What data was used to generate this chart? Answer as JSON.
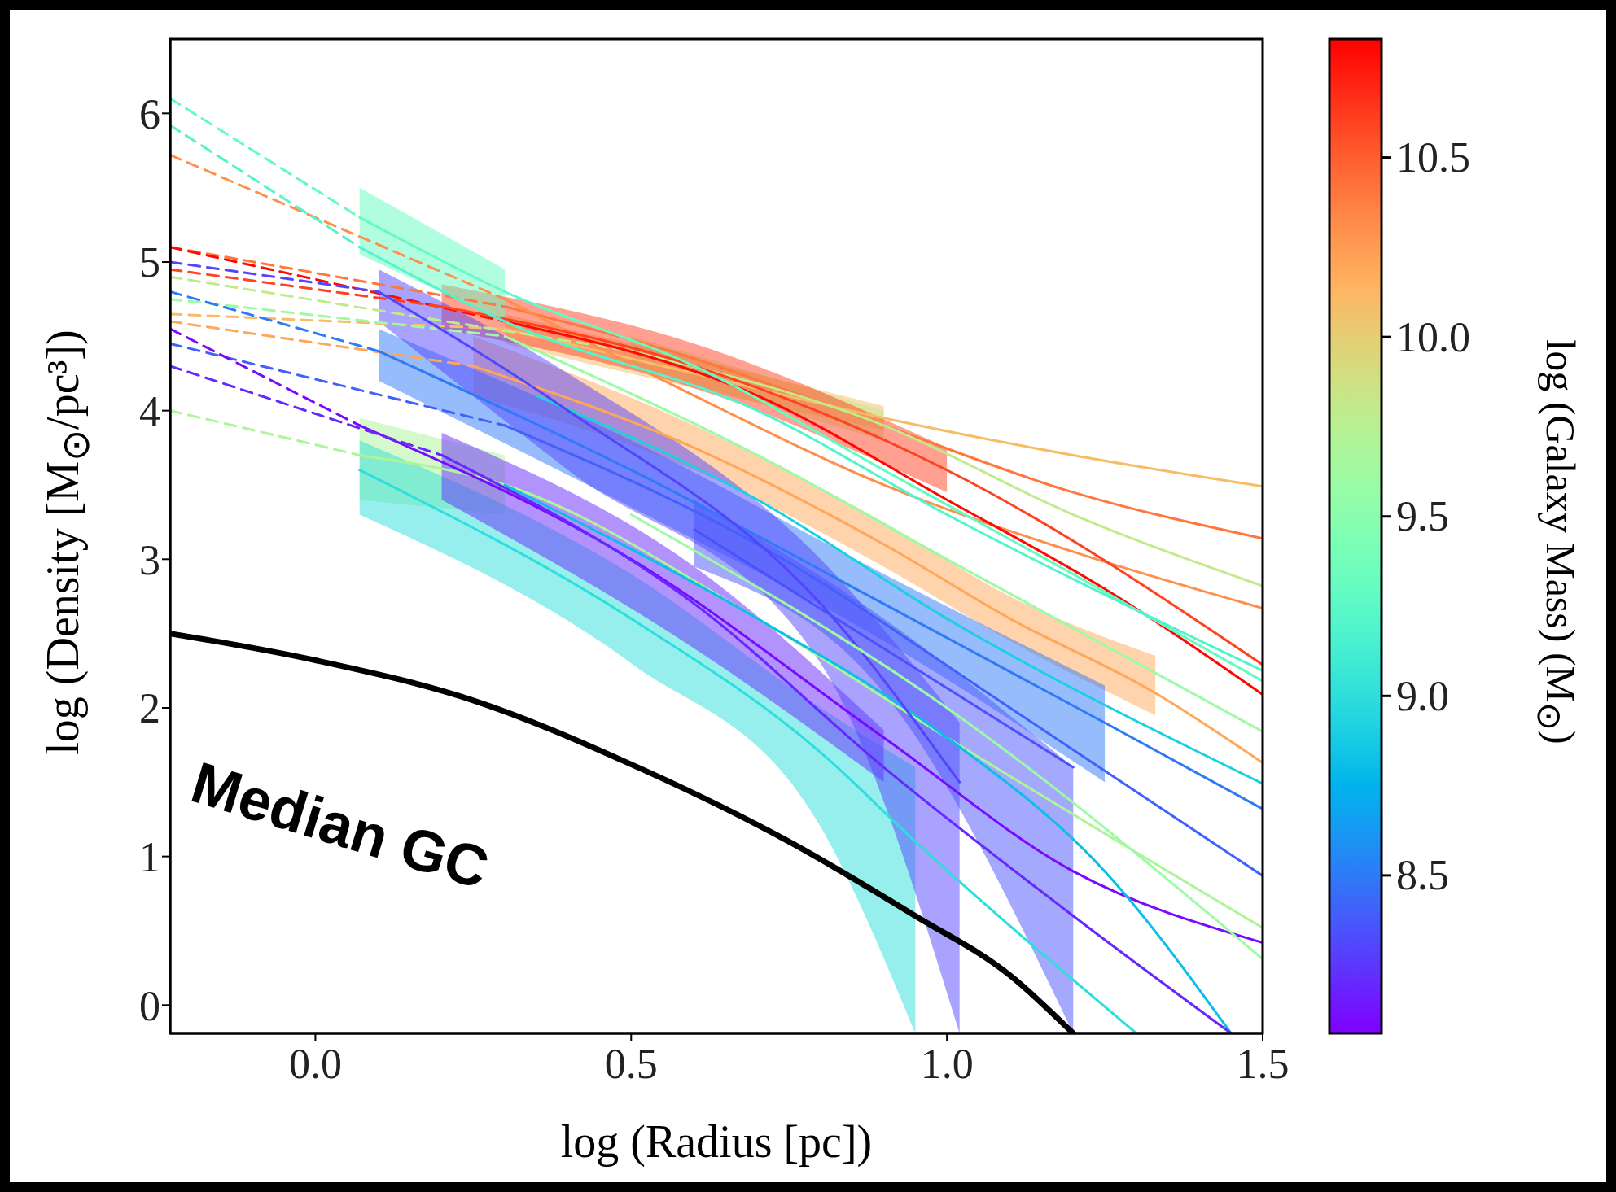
{
  "chart_data": {
    "type": "line",
    "xlabel": "log (Radius [pc])",
    "ylabel": "log (Density [M$_{⊙}$/pc³])",
    "clabel": "log (Galaxy Mass) (M$_{⊙}$)",
    "xlim": [
      -0.23,
      1.5
    ],
    "xticks": [
      {
        "value": 0,
        "label": "0.0"
      },
      {
        "value": 0.5,
        "label": "0.5"
      },
      {
        "value": 1,
        "label": "1.0"
      },
      {
        "value": 1.5,
        "label": "1.5"
      }
    ],
    "ylim": [
      -0.19,
      6.5
    ],
    "yticks": [
      0,
      1,
      2,
      3,
      4,
      5,
      6
    ],
    "clim": [
      8.06,
      10.83
    ],
    "cticks": [
      {
        "value": 8.5,
        "label": "8.5"
      },
      {
        "value": 9,
        "label": "9.0"
      },
      {
        "value": 9.5,
        "label": "9.5"
      },
      {
        "value": 10,
        "label": "10.0"
      },
      {
        "value": 10.5,
        "label": "10.5"
      }
    ],
    "grid": false,
    "legend": false,
    "line_style": "solid",
    "annotations": [
      "Median GC"
    ],
    "series": [
      {
        "color": "#f8bc67",
        "line_style": "dashed",
        "x": [
          -0.23,
          0.3
        ],
        "values": [
          4.65,
          4.55
        ]
      },
      {
        "color": "#f8bc67",
        "x": [
          0.3,
          0.6,
          0.9,
          1.2,
          1.5
        ],
        "values": [
          4.55,
          4.25,
          3.95,
          3.7,
          3.49
        ],
        "lower": [
          4.45,
          4.15,
          3.87,
          null,
          null
        ],
        "upper": [
          4.65,
          4.35,
          4.03,
          null,
          null
        ]
      },
      {
        "color": "#ff773d",
        "line_style": "dashed",
        "x": [
          -0.23,
          0.3
        ],
        "values": [
          5.1,
          4.7
        ]
      },
      {
        "color": "#ff773d",
        "x": [
          0.3,
          0.6,
          0.9,
          1.2,
          1.5
        ],
        "values": [
          4.7,
          4.35,
          3.9,
          3.45,
          3.14
        ]
      },
      {
        "color": "#c1ea8c",
        "line_style": "dashed",
        "x": [
          -0.23,
          0.5
        ],
        "values": [
          4.9,
          4.4
        ]
      },
      {
        "color": "#c1ea8c",
        "x": [
          0.5,
          0.9,
          1.2,
          1.5
        ],
        "values": [
          4.4,
          3.9,
          3.3,
          2.82
        ],
        "lower": [
          4.3,
          3.8,
          null,
          null
        ],
        "upper": [
          4.5,
          4.0,
          null,
          null
        ]
      },
      {
        "color": "#ff904b",
        "line_style": "dashed",
        "x": [
          -0.23,
          0.3
        ],
        "values": [
          5.72,
          4.75
        ]
      },
      {
        "color": "#ff904b",
        "x": [
          0.3,
          0.6,
          0.9,
          1.2,
          1.5
        ],
        "values": [
          4.75,
          4.1,
          3.5,
          3.05,
          2.67
        ]
      },
      {
        "color": "#ff0904",
        "line_style": "dashed",
        "x": [
          -0.23,
          0.3
        ],
        "values": [
          5.1,
          4.6
        ]
      },
      {
        "color": "#ff0904",
        "x": [
          0.3,
          0.7,
          1.0,
          1.25,
          1.5
        ],
        "values": [
          4.6,
          4.1,
          3.4,
          2.8,
          2.09
        ]
      },
      {
        "color": "#ff4221",
        "line_style": "dashed",
        "x": [
          -0.23,
          0.2
        ],
        "values": [
          4.95,
          4.7
        ]
      },
      {
        "color": "#ff4221",
        "x": [
          0.2,
          0.6,
          1.0,
          1.5
        ],
        "values": [
          4.7,
          4.3,
          3.6,
          2.29
        ],
        "lower": [
          4.55,
          4.15,
          3.45,
          null
        ],
        "upper": [
          4.85,
          4.45,
          3.75,
          null
        ]
      },
      {
        "color": "#64fbc2",
        "line_style": "dashed",
        "x": [
          -0.23,
          0.07
        ],
        "values": [
          6.1,
          5.3
        ]
      },
      {
        "color": "#64fbc2",
        "x": [
          0.07,
          0.3,
          0.6,
          0.9,
          1.2,
          1.5
        ],
        "values": [
          5.3,
          4.8,
          4.3,
          3.6,
          2.9,
          2.18
        ],
        "lower": [
          5.05,
          4.6,
          null,
          null,
          null,
          null
        ],
        "upper": [
          5.5,
          4.95,
          null,
          null,
          null,
          null
        ]
      },
      {
        "color": "#52f5cb",
        "line_style": "dashed",
        "x": [
          -0.23,
          0.07
        ],
        "values": [
          5.92,
          5.1
        ]
      },
      {
        "color": "#52f5cb",
        "x": [
          0.07,
          0.3,
          0.7,
          1.0,
          1.5
        ],
        "values": [
          5.1,
          4.6,
          4.0,
          3.3,
          2.25
        ]
      },
      {
        "color": "#9cfba4",
        "line_style": "dashed",
        "x": [
          -0.23,
          0.3
        ],
        "values": [
          4.75,
          4.5
        ]
      },
      {
        "color": "#9cfba4",
        "x": [
          0.3,
          0.7,
          1.0,
          1.5
        ],
        "values": [
          4.5,
          3.7,
          3.0,
          1.84
        ]
      },
      {
        "color": "#ffa759",
        "line_style": "dashed",
        "x": [
          -0.23,
          0.25
        ],
        "values": [
          4.6,
          4.3
        ]
      },
      {
        "color": "#ffa759",
        "x": [
          0.25,
          0.6,
          0.9,
          1.1,
          1.33,
          1.5
        ],
        "values": [
          4.3,
          3.75,
          3.1,
          2.6,
          2.1,
          1.63
        ],
        "lower": [
          4.1,
          3.6,
          2.95,
          2.45,
          1.95,
          null
        ],
        "upper": [
          4.5,
          3.9,
          3.25,
          2.75,
          2.35,
          null
        ]
      },
      {
        "color": "#1bd0e3",
        "x": [
          0.35,
          0.7,
          1.0,
          1.5
        ],
        "values": [
          4.1,
          3.4,
          2.6,
          1.49
        ]
      },
      {
        "color": "#2e7af7",
        "line_style": "dashed",
        "x": [
          -0.23,
          0.1
        ],
        "values": [
          4.8,
          4.4
        ]
      },
      {
        "color": "#2e7af7",
        "x": [
          0.1,
          0.5,
          0.9,
          1.25,
          1.5
        ],
        "values": [
          4.4,
          3.6,
          2.7,
          1.9,
          1.32
        ],
        "lower": [
          4.2,
          3.35,
          2.45,
          1.5,
          null
        ],
        "upper": [
          4.55,
          3.8,
          2.9,
          2.15,
          null
        ]
      },
      {
        "color": "#4161fa",
        "line_style": "dashed",
        "x": [
          -0.23,
          0.3
        ],
        "values": [
          4.45,
          3.9
        ]
      },
      {
        "color": "#4161fa",
        "x": [
          0.3,
          0.7,
          1.1,
          1.5
        ],
        "values": [
          3.9,
          3.1,
          2.0,
          0.87
        ]
      },
      {
        "color": "#aef498",
        "line_style": "dashed",
        "x": [
          -0.23,
          0.07
        ],
        "values": [
          4.0,
          3.7
        ]
      },
      {
        "color": "#aef498",
        "x": [
          0.07,
          0.3,
          0.7,
          1.0,
          1.5
        ],
        "values": [
          3.7,
          3.5,
          2.6,
          1.8,
          0.52
        ],
        "lower": [
          3.4,
          3.3,
          null,
          null,
          null
        ],
        "upper": [
          3.95,
          3.7,
          null,
          null,
          null
        ]
      },
      {
        "color": "#780bff",
        "line_style": "dashed",
        "x": [
          -0.23,
          0.07
        ],
        "values": [
          4.55,
          3.9
        ]
      },
      {
        "color": "#780bff",
        "x": [
          0.07,
          0.5,
          0.9,
          1.2,
          1.5
        ],
        "values": [
          3.9,
          3.0,
          1.8,
          0.9,
          0.42
        ]
      },
      {
        "color": "#2ddfdc",
        "x": [
          0.07,
          0.5,
          0.8,
          0.95,
          1.3
        ],
        "values": [
          3.6,
          2.6,
          1.7,
          1.1,
          -0.19
        ],
        "lower": [
          3.3,
          2.3,
          1.2,
          -0.19,
          null
        ],
        "upper": [
          3.8,
          2.9,
          2.0,
          1.6,
          null
        ]
      },
      {
        "color": "#09bee9",
        "x": [
          0.3,
          0.7,
          1.0,
          1.25,
          1.45
        ],
        "values": [
          3.5,
          2.6,
          1.8,
          0.9,
          -0.19
        ]
      },
      {
        "color": "#6528fe",
        "line_style": "dashed",
        "x": [
          -0.23,
          0.2
        ],
        "values": [
          4.3,
          3.7
        ]
      },
      {
        "color": "#6528fe",
        "x": [
          0.2,
          0.6,
          0.9,
          1.2,
          1.45
        ],
        "values": [
          3.7,
          2.7,
          1.6,
          0.6,
          -0.19
        ],
        "lower": [
          3.4,
          2.4,
          1.5,
          null,
          null
        ],
        "upper": [
          3.85,
          2.95,
          1.85,
          null,
          null
        ]
      },
      {
        "color": "#5345fd",
        "line_style": "dashed",
        "x": [
          -0.23,
          0.1
        ],
        "values": [
          5.0,
          4.8
        ]
      },
      {
        "color": "#5345fd",
        "x": [
          0.1,
          0.4,
          0.8,
          1.02
        ],
        "values": [
          4.8,
          4.0,
          2.7,
          1.5
        ],
        "lower": [
          4.6,
          3.6,
          2.3,
          -0.19
        ],
        "upper": [
          4.95,
          4.25,
          3.0,
          1.9
        ]
      },
      {
        "color": "#4a53fb",
        "x": [
          0.6,
          0.9,
          1.2
        ],
        "values": [
          3.2,
          2.4,
          1.6
        ],
        "lower": [
          2.95,
          2.1,
          -0.19
        ],
        "upper": [
          3.4,
          2.6,
          1.6
        ]
      },
      {
        "color": "#9cfba4",
        "x": [
          0.5,
          1.0,
          1.5
        ],
        "values": [
          3.3,
          2.0,
          0.31
        ]
      },
      {
        "color": "#000000",
        "x": [
          -0.23,
          0.0,
          0.25,
          0.5,
          0.75,
          0.95,
          1.1,
          1.2
        ],
        "values": [
          2.5,
          2.32,
          2.05,
          1.62,
          1.1,
          0.6,
          0.2,
          -0.19
        ]
      }
    ]
  }
}
